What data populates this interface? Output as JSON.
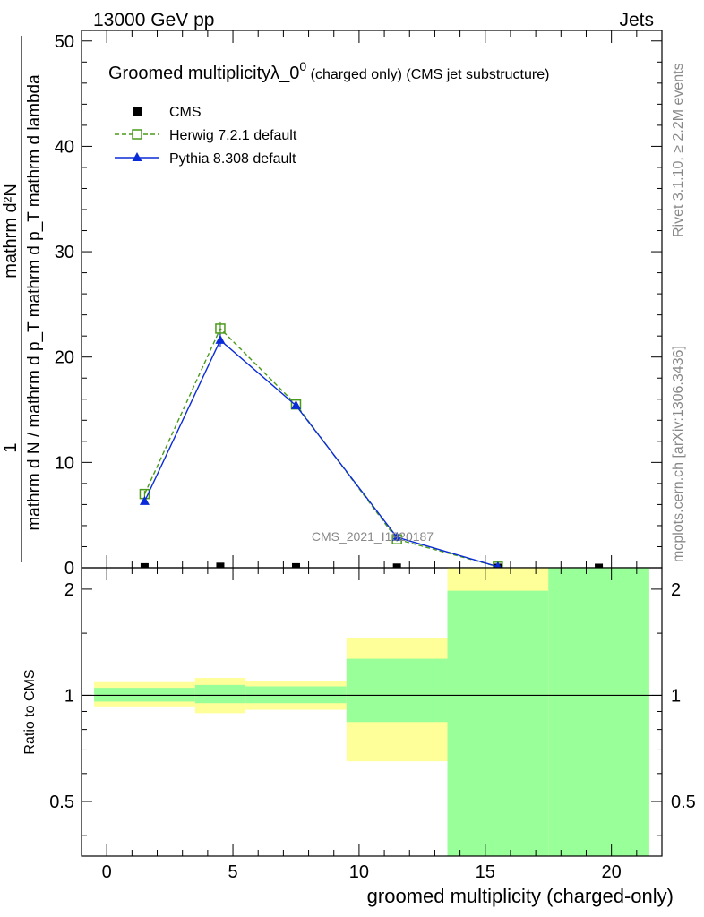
{
  "header": {
    "left": "13000 GeV pp",
    "right": "Jets"
  },
  "side_labels": {
    "rivet": "Rivet 3.1.10, ≥ 2.2M events",
    "mcplots": "mcplots.cern.ch [arXiv:1306.3436]"
  },
  "watermark": "CMS_2021_I1920187",
  "chart_data": [
    {
      "type": "line",
      "title_main": "Groomed multiplicityλ_0",
      "title_sup": "0",
      "title_suffix": " (charged only) (CMS jet substructure)",
      "ylabel_numerator": "1",
      "ylabel_denominator": "mathrm d N / mathrm d p_T mathrm d p_T mathrm d lambda",
      "ylabel_top": "mathrm d²N",
      "ylim": [
        0,
        51
      ],
      "yticks": [
        0,
        10,
        20,
        30,
        40,
        50
      ],
      "xlim": [
        -1,
        22
      ],
      "legend_position": "top-left",
      "series": [
        {
          "name": "CMS",
          "color": "#000000",
          "marker": "square-filled",
          "x": [
            1.5,
            4.5,
            7.5,
            11.5,
            15.5,
            19.5
          ],
          "y": [
            0.05,
            0.1,
            0.05,
            0.02,
            0.005,
            0.002
          ]
        },
        {
          "name": "Herwig 7.2.1 default",
          "color": "#4a9a1a",
          "marker": "square-open",
          "line": "dashed",
          "x": [
            1.5,
            4.5,
            7.5,
            11.5,
            15.5
          ],
          "y": [
            7.0,
            22.7,
            15.5,
            2.7,
            0.1
          ],
          "yerr": [
            0.3,
            0.6,
            0.3,
            0.2,
            0.05
          ]
        },
        {
          "name": "Pythia 8.308 default",
          "color": "#0a2bd8",
          "marker": "triangle-filled",
          "line": "solid",
          "x": [
            1.5,
            4.5,
            7.5,
            11.5,
            15.5
          ],
          "y": [
            6.3,
            21.6,
            15.4,
            2.9,
            0.1
          ],
          "yerr": [
            0.3,
            0.6,
            0.3,
            0.2,
            0.05
          ]
        }
      ]
    },
    {
      "type": "area",
      "ylabel": "Ratio to CMS",
      "xlabel": "groomed multiplicity (charged-only)",
      "scale": "log",
      "ylim": [
        0.35,
        2.3
      ],
      "yticks": [
        0.5,
        1,
        2
      ],
      "ytick_labels": [
        "0.5",
        "1",
        "2"
      ],
      "xlim": [
        -1,
        22
      ],
      "xticks": [
        0,
        5,
        10,
        15,
        20
      ],
      "xtick_labels": [
        "0",
        "5",
        "10",
        "15",
        "20"
      ],
      "reference_line": 1,
      "bins": [
        {
          "x_lo": -0.5,
          "x_hi": 3.5,
          "total": [
            0.93,
            1.09
          ],
          "stat": [
            0.96,
            1.05
          ]
        },
        {
          "x_lo": 3.5,
          "x_hi": 5.5,
          "total": [
            0.89,
            1.12
          ],
          "stat": [
            0.95,
            1.07
          ]
        },
        {
          "x_lo": 5.5,
          "x_hi": 9.5,
          "total": [
            0.91,
            1.1
          ],
          "stat": [
            0.95,
            1.06
          ]
        },
        {
          "x_lo": 9.5,
          "x_hi": 13.5,
          "total": [
            0.65,
            1.45
          ],
          "stat": [
            0.84,
            1.27
          ]
        },
        {
          "x_lo": 13.5,
          "x_hi": 17.5,
          "total": [
            0.35,
            2.3
          ],
          "stat": [
            0.35,
            1.98
          ]
        },
        {
          "x_lo": 17.5,
          "x_hi": 21.5,
          "total": [
            0.35,
            2.3
          ],
          "stat": [
            0.35,
            2.3
          ]
        }
      ],
      "colors": {
        "total": "#ffff99",
        "stat": "#99ff99"
      }
    }
  ]
}
